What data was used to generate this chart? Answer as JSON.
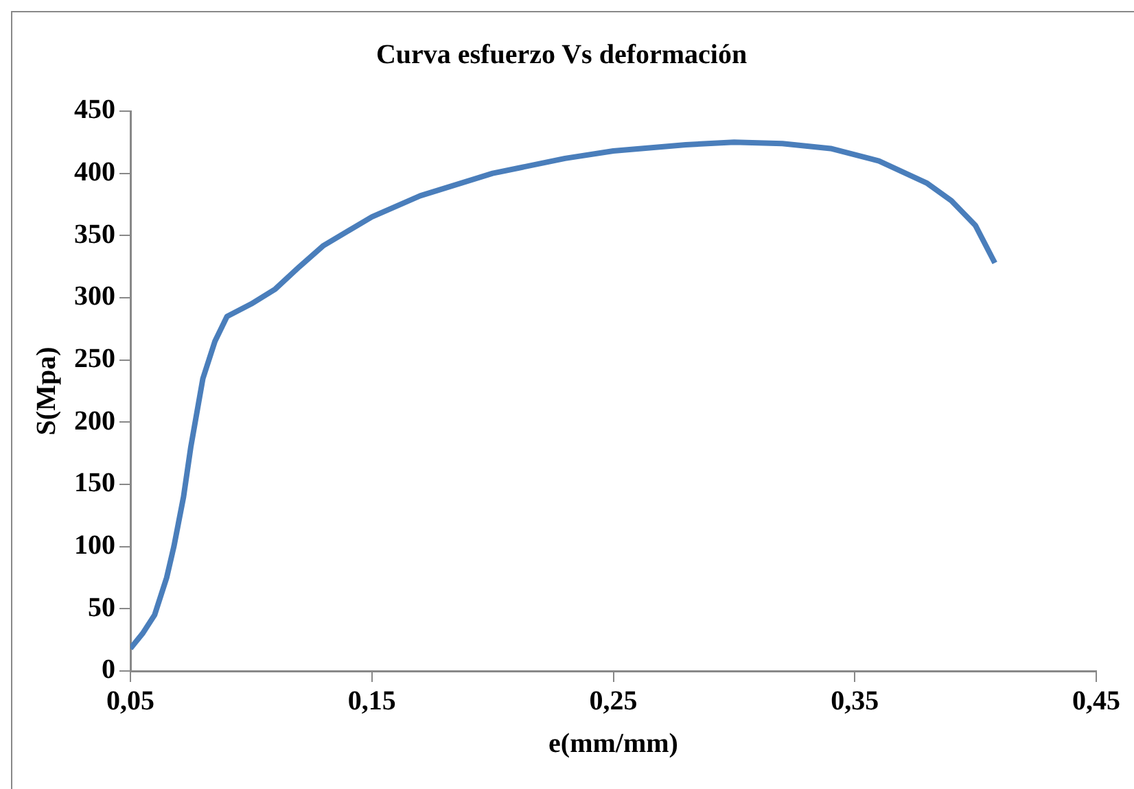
{
  "chart_data": {
    "type": "line",
    "title": "Curva esfuerzo Vs deformación",
    "xlabel": "e(mm/mm)",
    "ylabel": "S(Mpa)",
    "x": [
      0.05,
      0.055,
      0.06,
      0.065,
      0.068,
      0.072,
      0.075,
      0.08,
      0.085,
      0.09,
      0.1,
      0.11,
      0.12,
      0.13,
      0.15,
      0.17,
      0.2,
      0.23,
      0.25,
      0.28,
      0.3,
      0.32,
      0.34,
      0.36,
      0.38,
      0.39,
      0.4,
      0.408
    ],
    "series": [
      {
        "color": "#4a7ebb",
        "values": [
          18,
          30,
          45,
          75,
          100,
          140,
          180,
          235,
          265,
          285,
          295,
          307,
          325,
          342,
          365,
          382,
          400,
          412,
          418,
          423,
          425,
          424,
          420,
          410,
          392,
          378,
          358,
          328
        ]
      }
    ],
    "xlim": [
      0.05,
      0.45
    ],
    "xticks": [
      {
        "value": 0.05,
        "label": "0,05"
      },
      {
        "value": 0.15,
        "label": "0,15"
      },
      {
        "value": 0.25,
        "label": "0,25"
      },
      {
        "value": 0.35,
        "label": "0,35"
      },
      {
        "value": 0.45,
        "label": "0,45"
      }
    ],
    "ylim": [
      0,
      450
    ],
    "yticks": [
      0,
      50,
      100,
      150,
      200,
      250,
      300,
      350,
      400,
      450
    ],
    "grid": false,
    "legend": false,
    "marker": "none",
    "line_style": "solid"
  }
}
